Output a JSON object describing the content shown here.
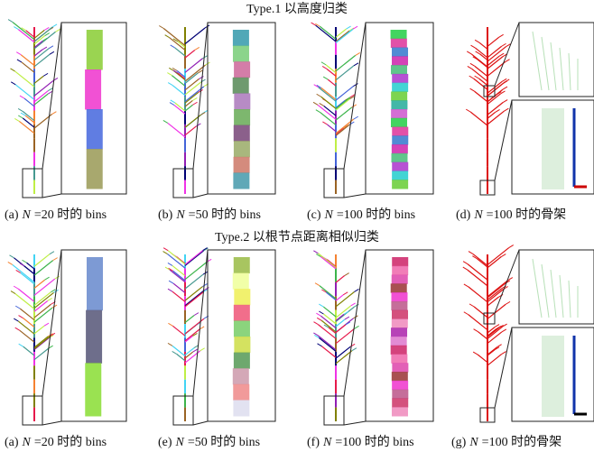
{
  "figure": {
    "rows": [
      {
        "title": "Type.1 以高度归类",
        "captions": [
          {
            "label": "(a)",
            "var": "N",
            "text": "=20 时的 bins"
          },
          {
            "label": "(b)",
            "var": "N",
            "text": "=50 时的 bins"
          },
          {
            "label": "(c)",
            "var": "N",
            "text": "=100 时的 bins"
          },
          {
            "label": "(d)",
            "var": "N",
            "text": "=100 时的骨架"
          }
        ]
      },
      {
        "title": "Type.2 以根节点距离相似归类",
        "captions": [
          {
            "label": "(a)",
            "var": "N",
            "text": "=20 时的 bins"
          },
          {
            "label": "(e)",
            "var": "N",
            "text": "=50 时的 bins"
          },
          {
            "label": "(f)",
            "var": "N",
            "text": "=100 时的 bins"
          },
          {
            "label": "(g)",
            "var": "N",
            "text": "=100 时的骨架"
          }
        ]
      }
    ]
  }
}
